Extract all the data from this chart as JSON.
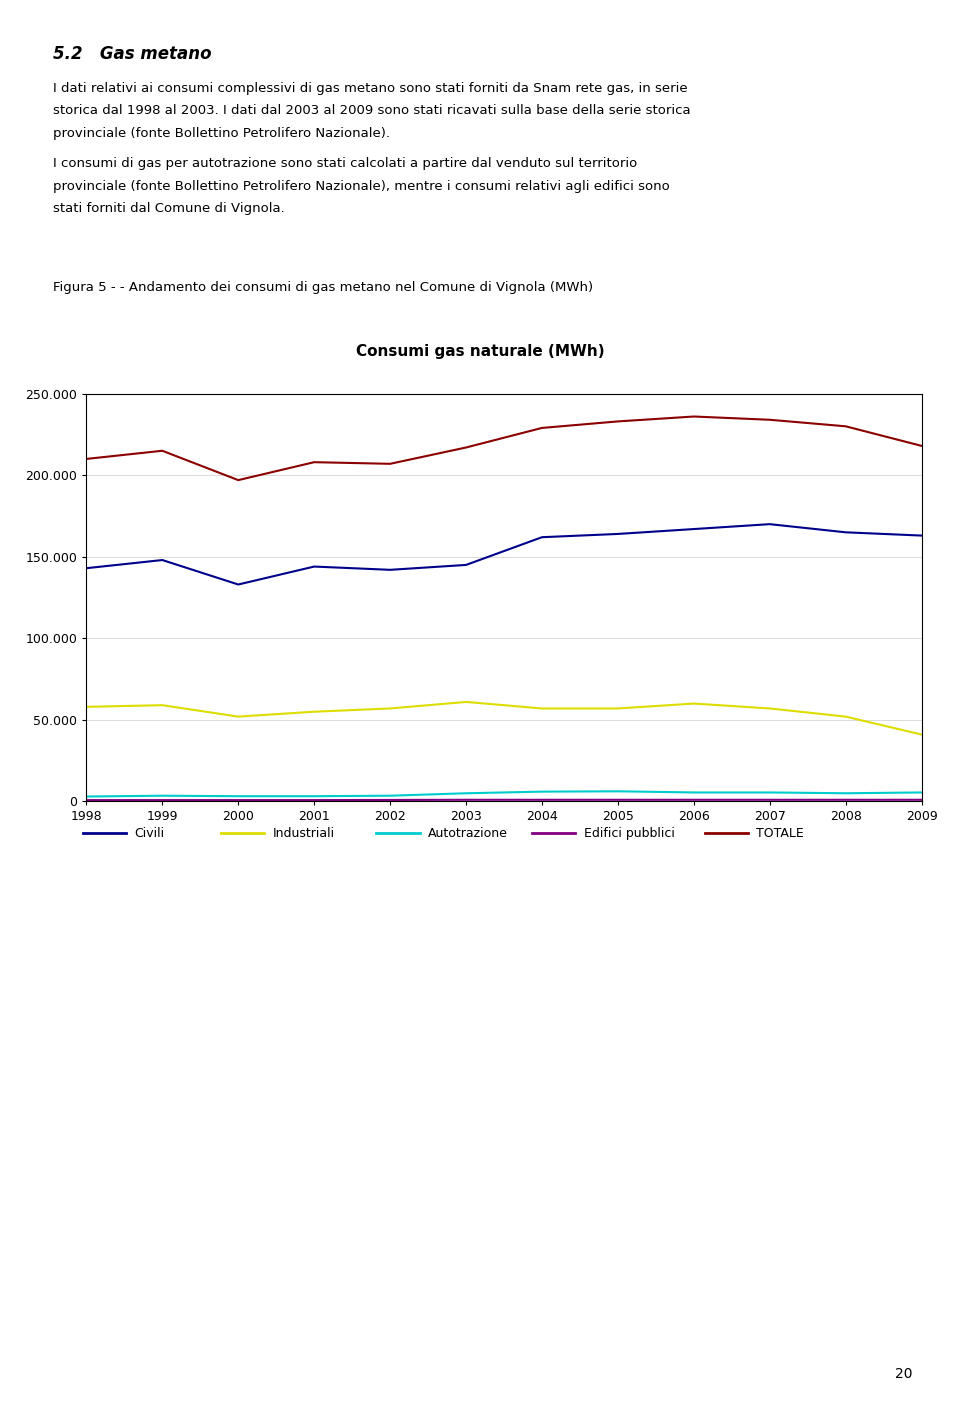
{
  "title": "Consumi gas naturale (MWh)",
  "figura_caption": "Figura 5 - - Andamento dei consumi di gas metano nel Comune di Vignola (MWh)",
  "section_title": "5.2   Gas metano",
  "paragraph1_line1": "I dati relativi ai consumi complessivi di gas metano sono stati forniti da Snam rete gas, in serie",
  "paragraph1_line2": "storica dal 1998 al 2003. I dati dal 2003 al 2009 sono stati ricavati sulla base della serie storica",
  "paragraph1_line3": "provinciale (fonte Bollettino Petrolifero Nazionale).",
  "paragraph2_line1": "I consumi di gas per autotrazione sono stati calcolati a partire dal venduto sul territorio",
  "paragraph2_line2": "provinciale (fonte Bollettino Petrolifero Nazionale), mentre i consumi relativi agli edifici sono",
  "paragraph2_line3": "stati forniti dal Comune di Vignola.",
  "page_number": "20",
  "years": [
    1998,
    1999,
    2000,
    2001,
    2002,
    2003,
    2004,
    2005,
    2006,
    2007,
    2008,
    2009
  ],
  "civili": [
    143000,
    148000,
    133000,
    144000,
    142000,
    145000,
    162000,
    164000,
    167000,
    170000,
    165000,
    163000
  ],
  "industriali": [
    58000,
    59000,
    52000,
    55000,
    57000,
    61000,
    57000,
    57000,
    60000,
    57000,
    52000,
    41000
  ],
  "autotrazione": [
    3000,
    3500,
    3200,
    3200,
    3500,
    5000,
    6000,
    6200,
    5500,
    5500,
    5000,
    5500
  ],
  "edifici_pub": [
    800,
    800,
    800,
    800,
    900,
    1000,
    1000,
    1000,
    1000,
    1000,
    1000,
    1000
  ],
  "totale": [
    210000,
    215000,
    197000,
    208000,
    207000,
    217000,
    229000,
    233000,
    236000,
    234000,
    230000,
    218000
  ],
  "color_civili": "#00008B",
  "color_industriali": "#DDDD00",
  "color_autotrazione": "#00CCCC",
  "color_edifici": "#800080",
  "color_totale": "#8B0000",
  "ylim": [
    0,
    250000
  ],
  "yticks": [
    0,
    50000,
    100000,
    150000,
    200000,
    250000
  ],
  "background_color": "#ffffff",
  "legend_labels": [
    "Civili",
    "Industriali",
    "Autotrazione",
    "Edifici pubblici",
    "TOTALE"
  ]
}
